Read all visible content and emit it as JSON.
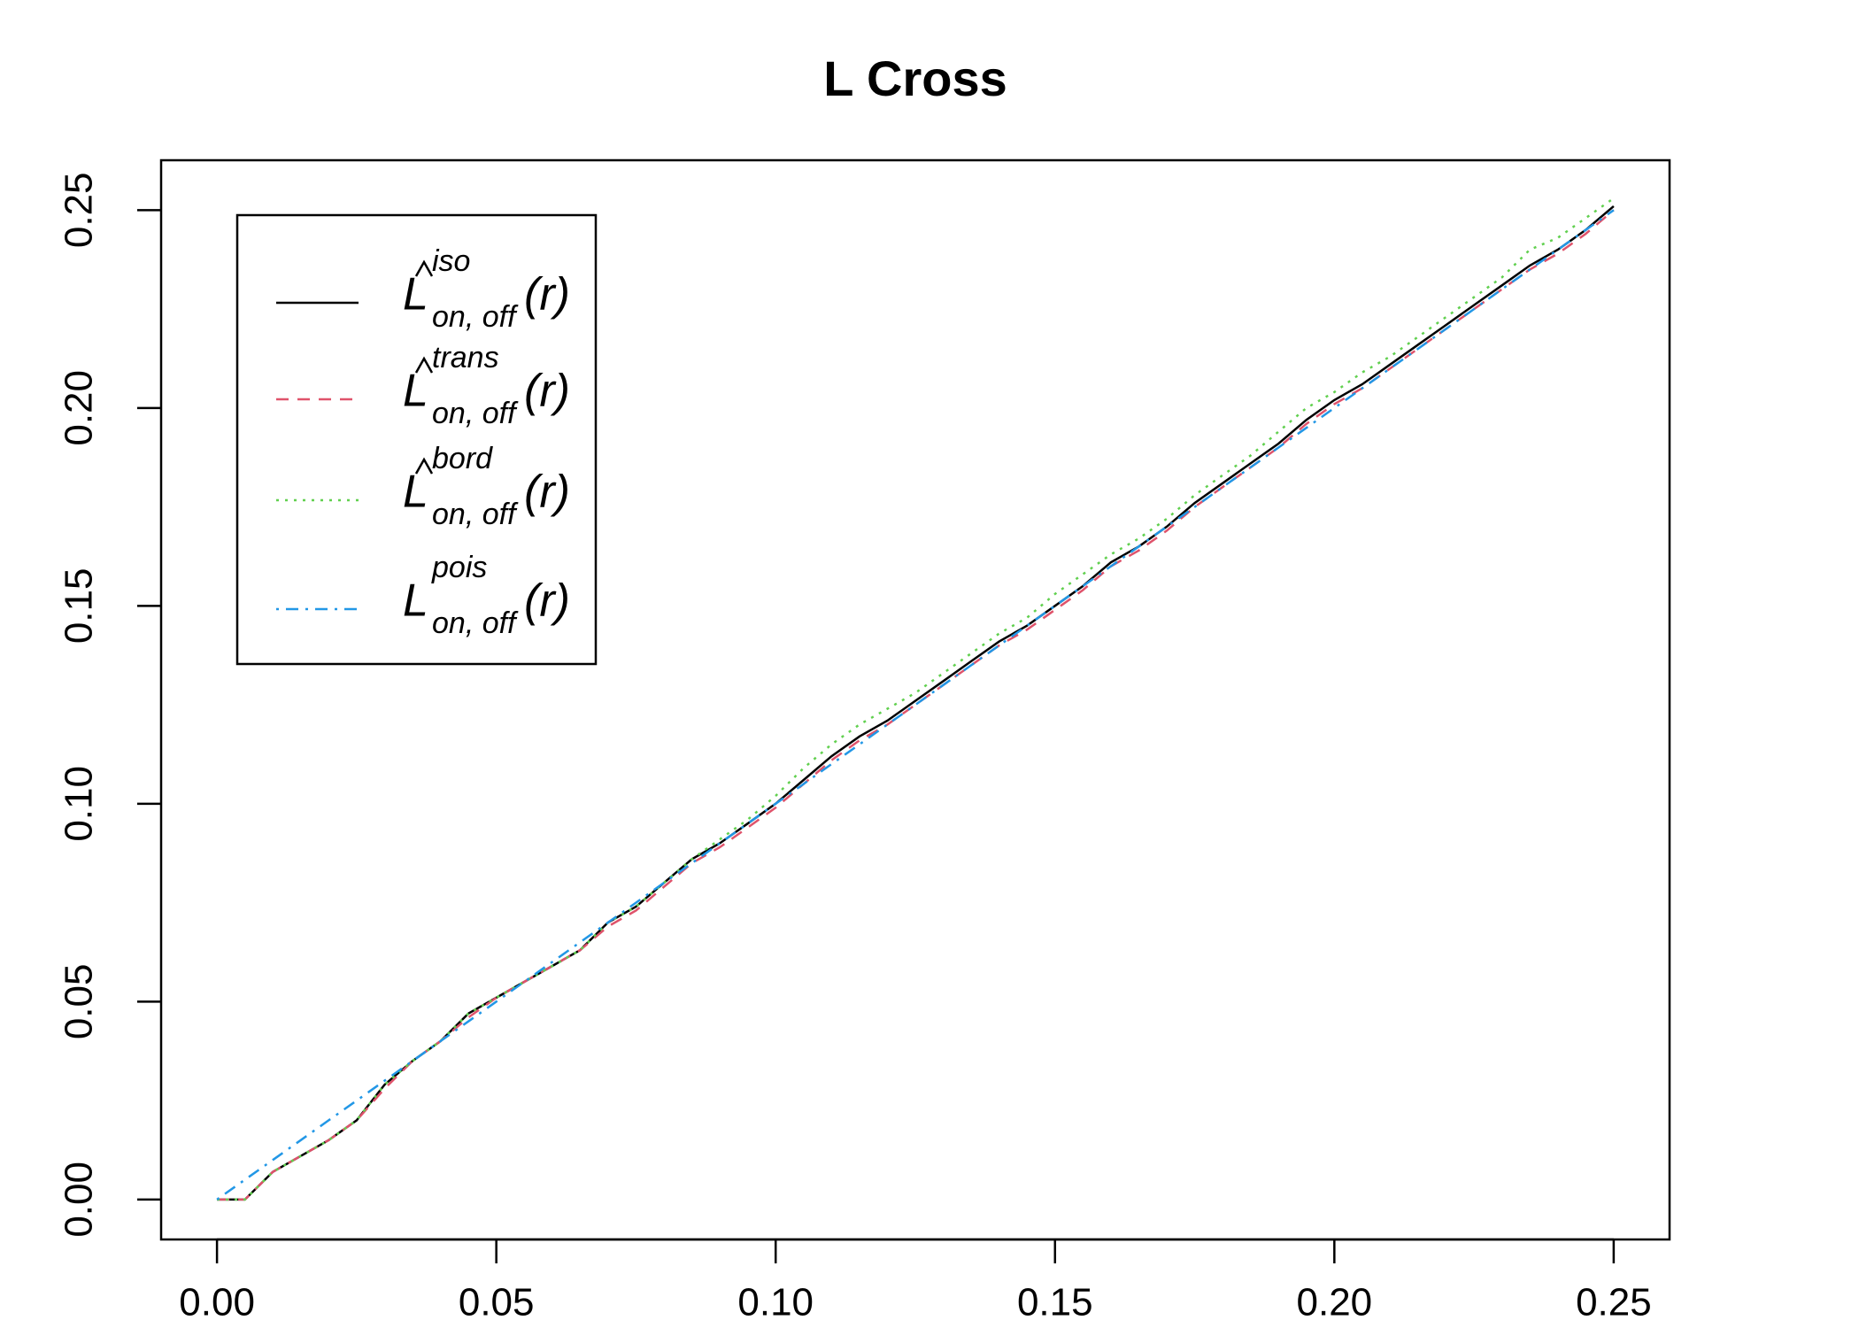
{
  "chart_data": {
    "type": "line",
    "title": "L Cross",
    "x": [
      0,
      0.005,
      0.01,
      0.015,
      0.02,
      0.025,
      0.03,
      0.035,
      0.04,
      0.045,
      0.05,
      0.055,
      0.06,
      0.065,
      0.07,
      0.075,
      0.08,
      0.085,
      0.09,
      0.095,
      0.1,
      0.105,
      0.11,
      0.115,
      0.12,
      0.125,
      0.13,
      0.135,
      0.14,
      0.145,
      0.15,
      0.155,
      0.16,
      0.165,
      0.17,
      0.175,
      0.18,
      0.185,
      0.19,
      0.195,
      0.2,
      0.205,
      0.21,
      0.215,
      0.22,
      0.225,
      0.23,
      0.235,
      0.24,
      0.245,
      0.25
    ],
    "series": [
      {
        "name": "L",
        "hat": true,
        "sup": "iso",
        "sub": "on, off",
        "arg": "(r)",
        "color": "#000000",
        "linestyle": "solid",
        "values": [
          0,
          0,
          0.007,
          0.011,
          0.015,
          0.02,
          0.029,
          0.035,
          0.04,
          0.047,
          0.051,
          0.055,
          0.059,
          0.063,
          0.07,
          0.074,
          0.08,
          0.086,
          0.09,
          0.095,
          0.1,
          0.106,
          0.112,
          0.117,
          0.121,
          0.126,
          0.131,
          0.136,
          0.141,
          0.145,
          0.15,
          0.155,
          0.161,
          0.165,
          0.17,
          0.176,
          0.181,
          0.186,
          0.191,
          0.197,
          0.202,
          0.206,
          0.211,
          0.216,
          0.221,
          0.226,
          0.231,
          0.236,
          0.24,
          0.245,
          0.251
        ]
      },
      {
        "name": "L",
        "hat": true,
        "sup": "trans",
        "sub": "on, off",
        "arg": "(r)",
        "color": "#DF536B",
        "linestyle": "dashed",
        "values": [
          0,
          0,
          0.007,
          0.011,
          0.015,
          0.02,
          0.028,
          0.035,
          0.04,
          0.046,
          0.051,
          0.055,
          0.059,
          0.063,
          0.069,
          0.073,
          0.079,
          0.085,
          0.089,
          0.094,
          0.099,
          0.105,
          0.111,
          0.116,
          0.12,
          0.125,
          0.13,
          0.135,
          0.14,
          0.144,
          0.149,
          0.154,
          0.16,
          0.164,
          0.169,
          0.175,
          0.18,
          0.185,
          0.19,
          0.196,
          0.201,
          0.205,
          0.21,
          0.215,
          0.22,
          0.225,
          0.23,
          0.235,
          0.239,
          0.244,
          0.25
        ]
      },
      {
        "name": "L",
        "hat": true,
        "sup": "bord",
        "sub": "on, off",
        "arg": "(r)",
        "color": "#61D04F",
        "linestyle": "dotted",
        "values": [
          0,
          0,
          0.007,
          0.011,
          0.015,
          0.02,
          0.029,
          0.035,
          0.04,
          0.047,
          0.051,
          0.055,
          0.059,
          0.063,
          0.07,
          0.074,
          0.08,
          0.086,
          0.091,
          0.096,
          0.102,
          0.109,
          0.115,
          0.12,
          0.124,
          0.128,
          0.133,
          0.138,
          0.143,
          0.147,
          0.153,
          0.158,
          0.163,
          0.167,
          0.172,
          0.178,
          0.183,
          0.188,
          0.194,
          0.2,
          0.204,
          0.209,
          0.213,
          0.218,
          0.223,
          0.228,
          0.233,
          0.24,
          0.243,
          0.248,
          0.253
        ]
      },
      {
        "name": "L",
        "hat": false,
        "sup": "pois",
        "sub": "on, off",
        "arg": "(r)",
        "color": "#2297E6",
        "linestyle": "dotdash",
        "values": [
          0,
          0.005,
          0.01,
          0.015,
          0.02,
          0.025,
          0.03,
          0.035,
          0.04,
          0.045,
          0.05,
          0.055,
          0.06,
          0.065,
          0.07,
          0.075,
          0.08,
          0.085,
          0.09,
          0.095,
          0.1,
          0.105,
          0.11,
          0.115,
          0.12,
          0.125,
          0.13,
          0.135,
          0.14,
          0.145,
          0.15,
          0.155,
          0.16,
          0.165,
          0.17,
          0.175,
          0.18,
          0.185,
          0.19,
          0.195,
          0.2,
          0.205,
          0.21,
          0.215,
          0.22,
          0.225,
          0.23,
          0.235,
          0.24,
          0.245,
          0.25
        ]
      }
    ],
    "xlim": [
      -0.01,
      0.26
    ],
    "ylim": [
      -0.0101,
      0.2626
    ],
    "xticks": [
      {
        "value": 0,
        "label": "0.00"
      },
      0.05,
      {
        "value": 0.1,
        "label": "0.10"
      },
      0.15,
      {
        "value": 0.2,
        "label": "0.20"
      },
      0.25
    ],
    "yticks": [
      {
        "value": 0,
        "label": "0.00"
      },
      0.05,
      {
        "value": 0.1,
        "label": "0.10"
      },
      0.15,
      {
        "value": 0.2,
        "label": "0.20"
      },
      0.25
    ],
    "legend": "top-left"
  }
}
